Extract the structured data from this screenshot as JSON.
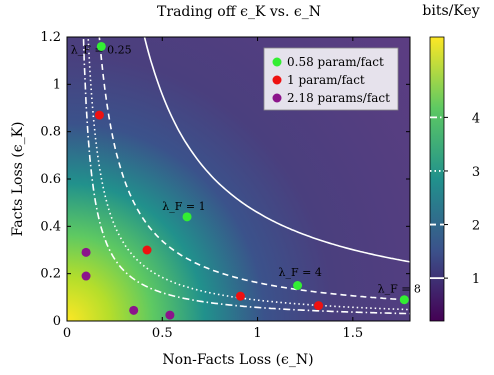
{
  "chart_data": {
    "type": "heatmap",
    "title": "Trading off ϵ_K vs. ϵ_N",
    "xlabel": "Non-Facts Loss (ϵ_N)",
    "ylabel": "Facts Loss (ϵ_K)",
    "xlim": [
      0,
      1.8
    ],
    "ylim": [
      0,
      1.2
    ],
    "x_ticks": [
      0,
      0.5,
      1,
      1.5
    ],
    "y_ticks": [
      0,
      0.2,
      0.4,
      0.6,
      0.8,
      1,
      1.2
    ],
    "x_tick_labels": [
      "0",
      "0.5",
      "1",
      "1.5"
    ],
    "y_tick_labels": [
      "0",
      "0.2",
      "0.4",
      "0.6",
      "0.8",
      "1",
      "1.2"
    ],
    "grid": false,
    "colorbar": {
      "title": "bits/Key",
      "min": 0.2,
      "max": 5.5,
      "ticks": [
        1,
        2,
        3,
        4
      ],
      "tick_labels": [
        "1",
        "2",
        "3",
        "4"
      ],
      "contour_styles": [
        "solid",
        "dashed",
        "dotted",
        "dash-dot"
      ],
      "colormap": [
        "#440154",
        "#3b528b",
        "#21918c",
        "#5ec962",
        "#fde725"
      ]
    },
    "contours": [
      {
        "level": 1,
        "style": "solid"
      },
      {
        "level": 2,
        "style": "dashed"
      },
      {
        "level": 3,
        "style": "dotted"
      },
      {
        "level": 4,
        "style": "dash-dot"
      }
    ],
    "lambda_labels": [
      {
        "text": "λ_F = 0.25",
        "x": 0.02,
        "y": 1.13
      },
      {
        "text": "λ_F = 1",
        "x": 0.5,
        "y": 0.47
      },
      {
        "text": "λ_F = 4",
        "x": 1.11,
        "y": 0.19
      },
      {
        "text": "λ_F = 8",
        "x": 1.63,
        "y": 0.12
      }
    ],
    "legend_position": "top-right",
    "series": [
      {
        "name": "0.58 param/fact",
        "color": "#33ee33",
        "points": [
          [
            0.18,
            1.16
          ],
          [
            0.63,
            0.44
          ],
          [
            1.21,
            0.15
          ],
          [
            1.77,
            0.09
          ]
        ]
      },
      {
        "name": "1 param/fact",
        "color": "#ee1111",
        "points": [
          [
            0.17,
            0.87
          ],
          [
            0.42,
            0.3
          ],
          [
            0.91,
            0.105
          ],
          [
            1.32,
            0.065
          ]
        ]
      },
      {
        "name": "2.18 params/fact",
        "color": "#8b148b",
        "points": [
          [
            0.1,
            0.29
          ],
          [
            0.1,
            0.19
          ],
          [
            0.35,
            0.045
          ],
          [
            0.54,
            0.025
          ]
        ]
      }
    ]
  }
}
